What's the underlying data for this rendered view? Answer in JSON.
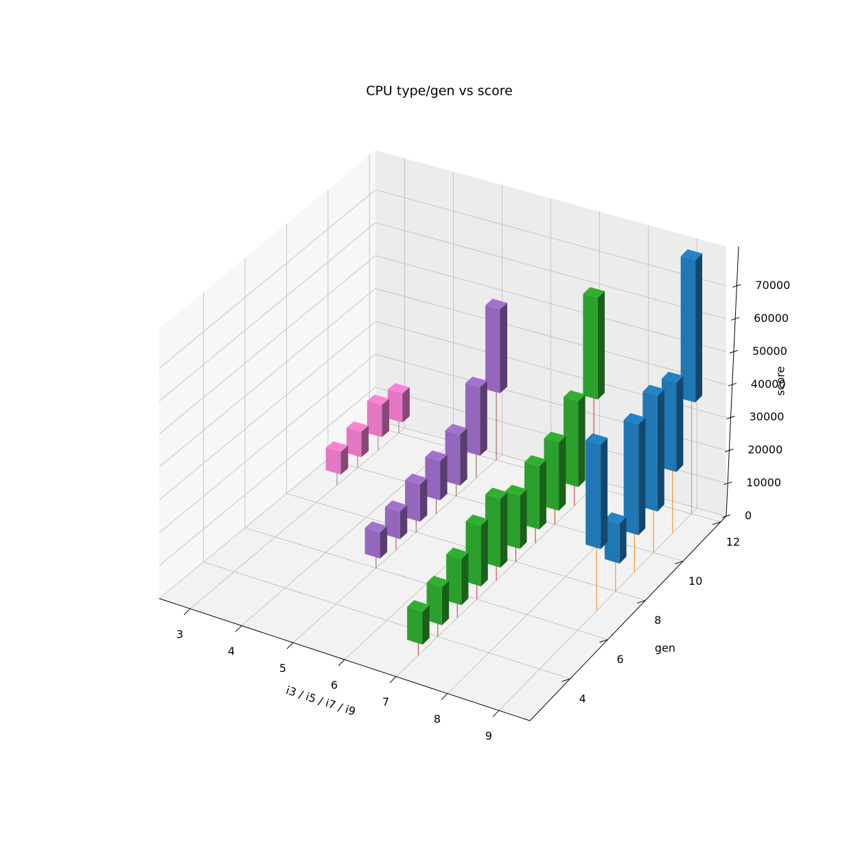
{
  "chart_data": {
    "type": "bar3d",
    "title": "CPU type/gen vs score",
    "xlabel": "i3 / i5 / i7 / i9",
    "ylabel": "gen",
    "zlabel": "score",
    "xlim": [
      2.4,
      9.6
    ],
    "ylim": [
      1.86,
      12.29
    ],
    "zlim": [
      0,
      82000
    ],
    "xticks": [
      3,
      4,
      5,
      6,
      7,
      8,
      9
    ],
    "yticks": [
      4,
      6,
      8,
      10,
      12
    ],
    "zticks": [
      0,
      10000,
      20000,
      30000,
      40000,
      50000,
      60000,
      70000
    ],
    "grid": true,
    "series": [
      {
        "x": 3,
        "color": "#e377c2",
        "stem_color": "#808080",
        "gen": [
          9,
          10,
          11,
          12
        ],
        "low": [
          4800,
          4800,
          5600,
          4800
        ],
        "high": [
          11700,
          12500,
          15400,
          13600
        ]
      },
      {
        "x": 5,
        "color": "#9467bd",
        "stem_color": "#8c564b",
        "gen": [
          6,
          7,
          8,
          9,
          10,
          11,
          12
        ],
        "low": [
          4600,
          5000,
          4800,
          5800,
          4800,
          8400,
          21900
        ],
        "high": [
          12500,
          13400,
          16100,
          17700,
          20300,
          29200,
          47400
        ]
      },
      {
        "x": 7,
        "color": "#2ca02c",
        "stem_color": "#d62728",
        "gen": [
          3,
          4,
          5,
          6,
          7,
          8,
          9,
          10,
          11,
          12
        ],
        "low": [
          5000,
          5200,
          5600,
          5600,
          5600,
          5600,
          5800,
          5800,
          7300,
          28200
        ],
        "high": [
          15000,
          16700,
          19600,
          24000,
          26500,
          21700,
          25000,
          26500,
          33400,
          59100
        ]
      },
      {
        "x": 9,
        "color": "#1f77b4",
        "stem_color": "#ff7f0e",
        "gen": [
          7,
          8,
          9,
          10,
          11,
          12
        ],
        "low": [
          20500,
          10200,
          12900,
          14200,
          20300,
          35500
        ],
        "high": [
          52200,
          22300,
          46600,
          49300,
          47400,
          78700
        ]
      }
    ]
  }
}
